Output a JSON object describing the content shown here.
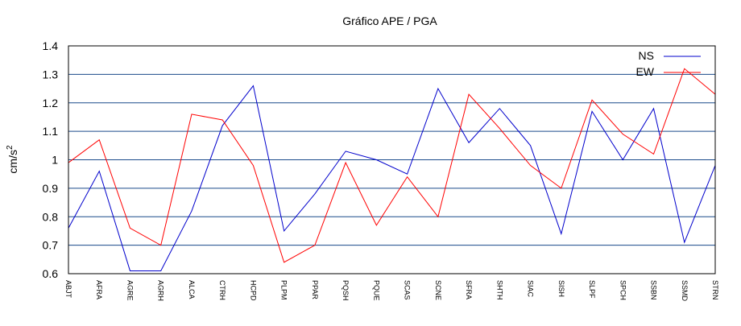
{
  "chart_data": {
    "type": "line",
    "title": "Gráfico  APE / PGA",
    "ylabel": "cm/s",
    "ylabel_exp": "2",
    "xlabel": "",
    "ylim": [
      0.6,
      1.4
    ],
    "yticks": [
      0.6,
      0.7,
      0.8,
      0.9,
      1.0,
      1.1,
      1.2,
      1.3,
      1.4
    ],
    "ytick_labels": [
      "0.6",
      "0.7",
      "0.8",
      "0.9",
      "1",
      "1.1",
      "1.2",
      "1.3",
      "1.4"
    ],
    "grid": "horizontal",
    "legend_position": "top-right",
    "categories": [
      "ABJT",
      "AFRA",
      "AGRE",
      "AGRH",
      "ALCA",
      "CTRH",
      "HCPD",
      "PLPM",
      "PPAR",
      "PQSH",
      "PQUE",
      "SCAS",
      "SCNE",
      "SFRA",
      "SHTH",
      "SIAC",
      "SISH",
      "SLPF",
      "SPCH",
      "SSBN",
      "SSMD",
      "STRN"
    ],
    "series": [
      {
        "name": "NS",
        "color": "#0000cc",
        "values": [
          0.76,
          0.96,
          0.61,
          0.61,
          0.82,
          1.12,
          1.26,
          0.75,
          0.88,
          1.03,
          1.0,
          0.95,
          1.25,
          1.06,
          1.18,
          1.05,
          0.74,
          1.17,
          1.0,
          1.18,
          0.71,
          0.98
        ]
      },
      {
        "name": "EW",
        "color": "#ff0000",
        "values": [
          0.99,
          1.07,
          0.76,
          0.7,
          1.16,
          1.14,
          0.98,
          0.64,
          0.7,
          0.99,
          0.77,
          0.94,
          0.8,
          1.23,
          1.11,
          0.98,
          0.9,
          1.21,
          1.09,
          1.02,
          1.32,
          1.23
        ]
      }
    ]
  }
}
